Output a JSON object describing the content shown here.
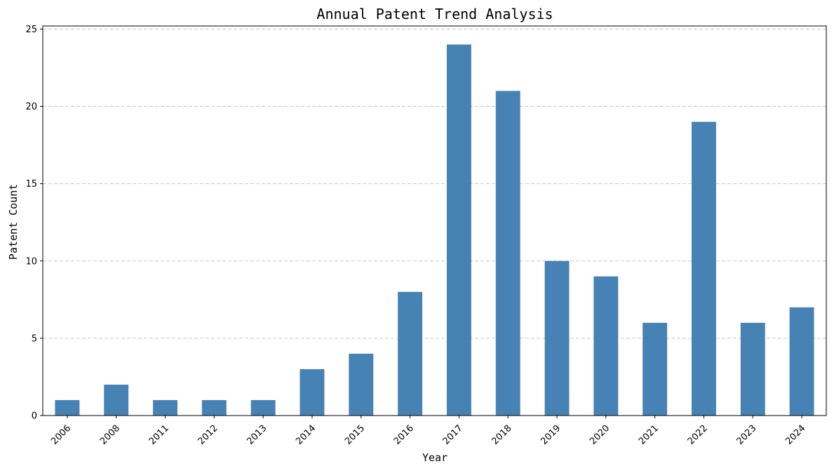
{
  "chart_data": {
    "type": "bar",
    "title": "Annual Patent Trend Analysis",
    "xlabel": "Year",
    "ylabel": "Patent Count",
    "categories": [
      "2006",
      "2008",
      "2011",
      "2012",
      "2013",
      "2014",
      "2015",
      "2016",
      "2017",
      "2018",
      "2019",
      "2020",
      "2021",
      "2022",
      "2023",
      "2024"
    ],
    "values": [
      1,
      2,
      1,
      1,
      1,
      3,
      4,
      8,
      24,
      21,
      10,
      9,
      6,
      19,
      6,
      7
    ],
    "ylim": [
      0,
      25.2
    ],
    "yticks": [
      0,
      5,
      10,
      15,
      20,
      25
    ],
    "grid": "horizontal dashed",
    "bar_color": "#4682b4",
    "grid_color": "#c8c8c8"
  }
}
